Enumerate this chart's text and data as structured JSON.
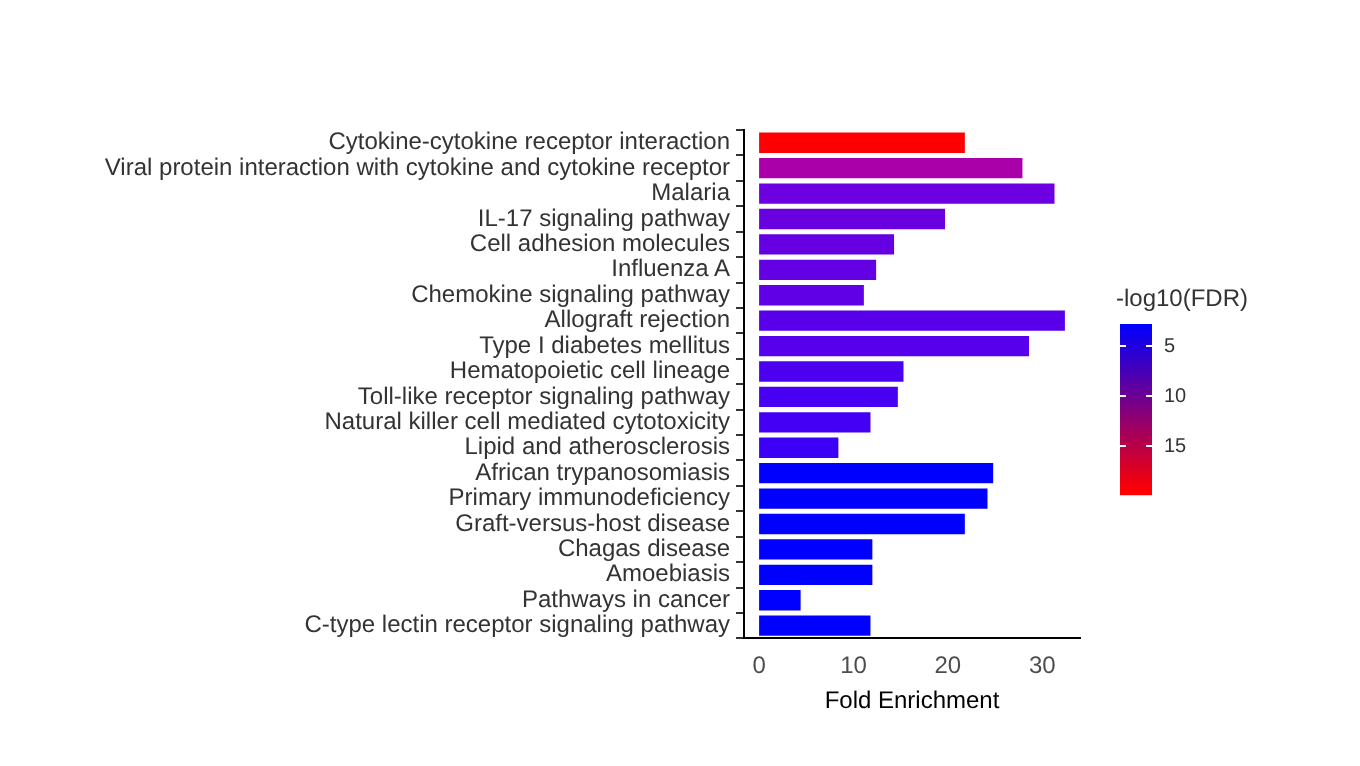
{
  "chart_data": {
    "type": "bar",
    "orientation": "horizontal",
    "xlabel": "Fold Enrichment",
    "clabel": "-log10(FDR)",
    "categories": [
      "Cytokine-cytokine receptor interaction",
      "Viral protein interaction with cytokine and cytokine receptor",
      "Malaria",
      "IL-17 signaling pathway",
      "Cell adhesion molecules",
      "Influenza A",
      "Chemokine signaling pathway",
      "Allograft rejection",
      "Type I diabetes mellitus",
      "Hematopoietic cell lineage",
      "Toll-like receptor signaling pathway",
      "Natural killer cell mediated cytotoxicity",
      "Lipid and atherosclerosis",
      "African trypanosomiasis",
      "Primary immunodeficiency",
      "Graft-versus-host disease",
      "Chagas disease",
      "Amoebiasis",
      "Pathways in cancer",
      "C-type lectin receptor signaling pathway"
    ],
    "values": [
      21.8,
      27.9,
      31.3,
      19.7,
      14.3,
      12.4,
      11.1,
      32.4,
      28.6,
      15.3,
      14.7,
      11.8,
      8.4,
      24.8,
      24.2,
      21.8,
      12.0,
      12.0,
      4.4,
      11.8
    ],
    "colors": [
      "#ff0000",
      "#aa00aa",
      "#6c00e0",
      "#6800e0",
      "#6600e2",
      "#6400e4",
      "#6000e6",
      "#5800ea",
      "#5600ec",
      "#4c00f0",
      "#4800f2",
      "#4400f4",
      "#3c00f6",
      "#0000ff",
      "#0000ff",
      "#0000ff",
      "#0000ff",
      "#0000ff",
      "#0000ff",
      "#0000ff"
    ],
    "xlim": [
      -1.6,
      34
    ],
    "xticks": [
      0,
      10,
      20,
      30
    ],
    "clim": [
      2.8,
      19.8
    ],
    "cticks": [
      5,
      10,
      15
    ],
    "grid": false
  }
}
